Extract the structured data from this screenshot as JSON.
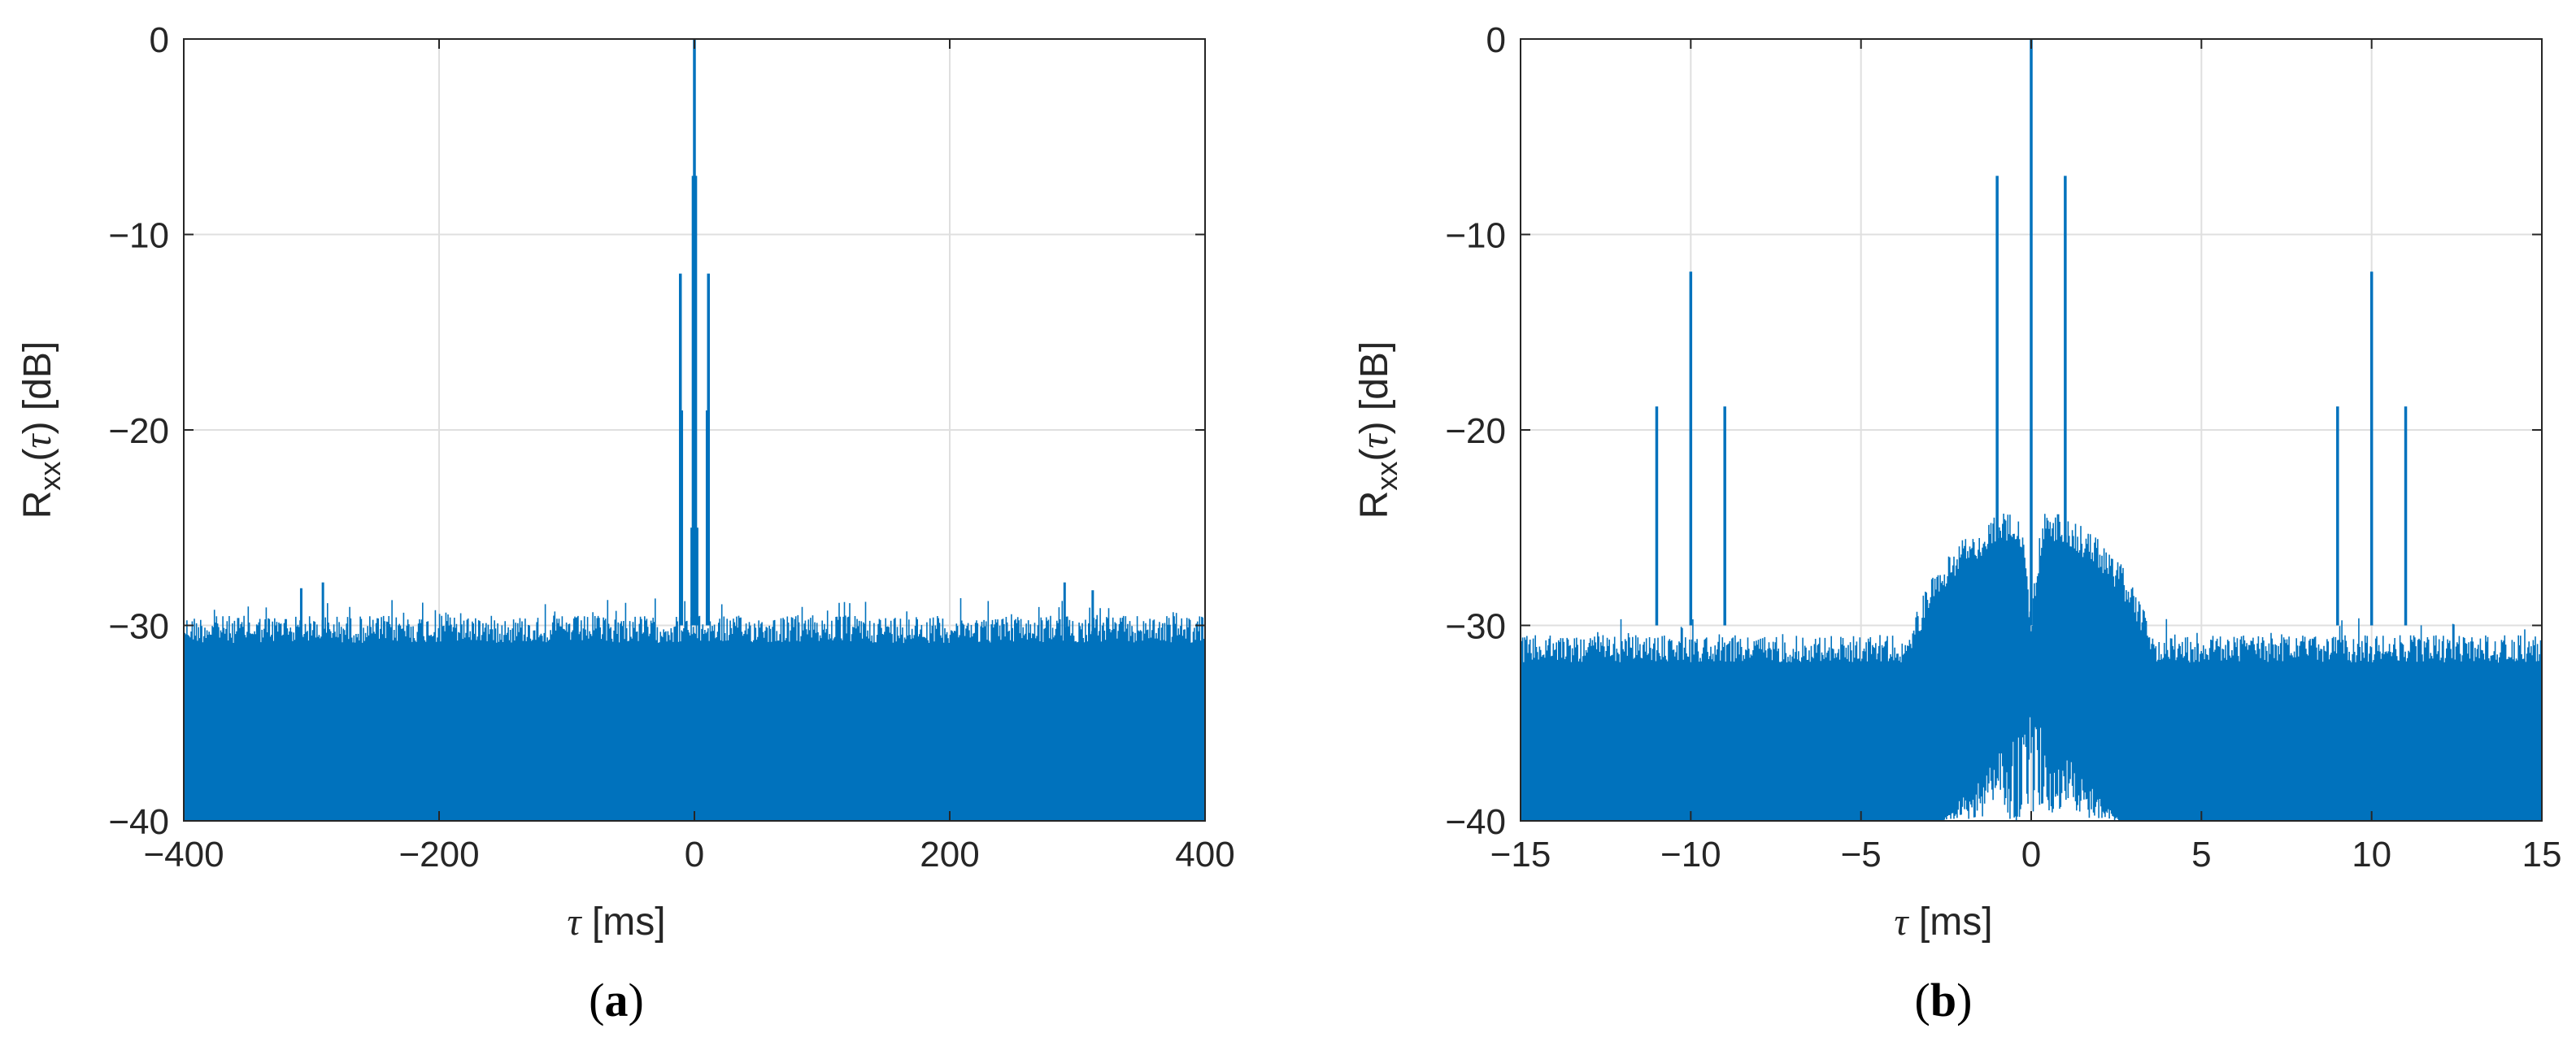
{
  "chart_data": [
    {
      "panel_label": "(a)",
      "type": "line",
      "xlabel_symbol": "τ",
      "xlabel_unit": " [ms]",
      "ylabel_main": "R",
      "ylabel_sub": "xx",
      "ylabel_arg": "(τ) [dB]",
      "xlim": [
        -400,
        400
      ],
      "ylim": [
        -40,
        0
      ],
      "xticks": [
        -400,
        -200,
        0,
        200,
        400
      ],
      "xtick_labels": [
        "−400",
        "−200",
        "0",
        "200",
        "400"
      ],
      "yticks": [
        0,
        -10,
        -20,
        -30,
        -40
      ],
      "ytick_labels": [
        "0",
        "−10",
        "−20",
        "−30",
        "−40"
      ],
      "grid": true,
      "series": [
        {
          "color": "#0072BD",
          "noise_floor": {
            "x_range": [
              -400,
              400
            ],
            "y_min": -40,
            "y_max_typical": -29.5
          },
          "outliers": [
            {
              "x": -308,
              "y": -28.1
            },
            {
              "x": -291,
              "y": -27.8
            },
            {
              "x": 290,
              "y": -27.8
            },
            {
              "x": 312,
              "y": -28.2
            }
          ],
          "peaks": [
            {
              "x": -11,
              "y": -12
            },
            {
              "x": -10,
              "y": -19
            },
            {
              "x": -2,
              "y": -25
            },
            {
              "x": -1,
              "y": -7
            },
            {
              "x": 0,
              "y": 0
            },
            {
              "x": 1,
              "y": -7
            },
            {
              "x": 2,
              "y": -25
            },
            {
              "x": 10,
              "y": -19
            },
            {
              "x": 11,
              "y": -12
            }
          ]
        }
      ]
    },
    {
      "panel_label": "(b)",
      "type": "line",
      "xlabel_symbol": "τ",
      "xlabel_unit": " [ms]",
      "ylabel_main": "R",
      "ylabel_sub": "xx",
      "ylabel_arg": "(τ) [dB]",
      "xlim": [
        -15,
        15
      ],
      "ylim": [
        -40,
        0
      ],
      "xticks": [
        -15,
        -10,
        -5,
        0,
        5,
        10,
        15
      ],
      "xtick_labels": [
        "−15",
        "−10",
        "−5",
        "0",
        "5",
        "10",
        "15"
      ],
      "yticks": [
        0,
        -10,
        -20,
        -30,
        -40
      ],
      "ytick_labels": [
        "0",
        "−10",
        "−20",
        "−30",
        "−40"
      ],
      "grid": true,
      "series": [
        {
          "color": "#0072BD",
          "noise_floor": {
            "x_range": [
              -15,
              15
            ],
            "y_min": -40,
            "y_max_typical": -30.5
          },
          "hump": {
            "x_range": [
              -3.5,
              3.5
            ],
            "y_max": -24,
            "center_dip_x": 0
          },
          "peaks": [
            {
              "x": -11,
              "y": -18.8
            },
            {
              "x": -10,
              "y": -11.9
            },
            {
              "x": -9,
              "y": -18.8
            },
            {
              "x": -1,
              "y": -7
            },
            {
              "x": 0,
              "y": 0
            },
            {
              "x": 1,
              "y": -7
            },
            {
              "x": 9,
              "y": -18.8
            },
            {
              "x": 10,
              "y": -11.9
            },
            {
              "x": 11,
              "y": -18.8
            }
          ]
        }
      ]
    }
  ]
}
